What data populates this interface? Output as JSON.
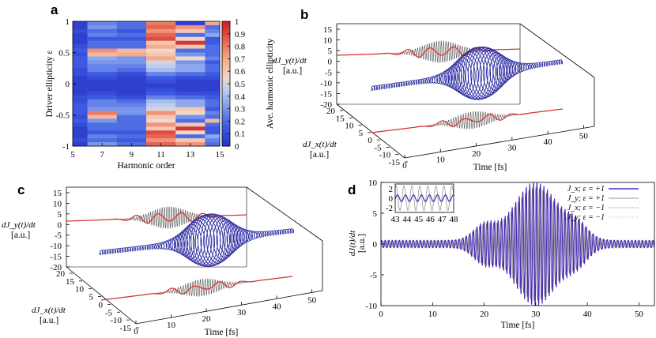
{
  "figure": {
    "panels": {
      "a": {
        "letter": "a",
        "xlabel": "Harmonic order",
        "ylabel": "Driver ellipticity ε",
        "colorbar_label": "Ave. harmonic ellipticity",
        "x_ticks": [
          "5",
          "7",
          "9",
          "11",
          "13",
          "15"
        ],
        "y_ticks": [
          "1",
          "0.5",
          "0",
          "-0.5",
          "-1"
        ],
        "cb_ticks": [
          "1",
          "0.9",
          "0.8",
          "0.7",
          "0.6",
          "0.5",
          "0.4",
          "0.3",
          "0.2",
          "0.1",
          "0"
        ]
      },
      "b": {
        "letter": "b",
        "y_label": "dJ_y(t)/dt",
        "y_unit": "[a.u.]",
        "x_label": "dJ_x(t)/dt",
        "x_unit": "[a.u.]",
        "time_label": "Time [fs]",
        "y_ticks": [
          "15",
          "10",
          "5",
          "0",
          "-5",
          "-10",
          "-15",
          "-20"
        ],
        "x_ticks": [
          "20",
          "15",
          "10",
          "5",
          "0",
          "-5",
          "-10",
          "-15"
        ],
        "time_ticks": [
          "0",
          "10",
          "20",
          "30",
          "40",
          "50"
        ]
      },
      "c": {
        "letter": "c",
        "y_label": "dJ_y(t)/dt",
        "y_unit": "[a.u.]",
        "x_label": "dJ_x(t)/dt",
        "x_unit": "[a.u.]",
        "time_label": "Time [fs]",
        "y_ticks": [
          "15",
          "10",
          "5",
          "0",
          "-5",
          "-10",
          "-15",
          "-20"
        ],
        "x_ticks": [
          "20",
          "15",
          "10",
          "5",
          "0",
          "-5",
          "-10",
          "-15"
        ],
        "time_ticks": [
          "0",
          "10",
          "20",
          "30",
          "40",
          "50"
        ]
      },
      "d": {
        "letter": "d",
        "ylabel": "dJ(t)/dt",
        "yunit": "[a.u.]",
        "xlabel": "Time [fs]",
        "x_ticks": [
          "0",
          "10",
          "20",
          "30",
          "40",
          "50"
        ],
        "y_ticks": [
          "10",
          "5",
          "0",
          "-5",
          "-10"
        ],
        "inset_x_ticks": [
          "43",
          "44",
          "45",
          "46",
          "47",
          "48"
        ],
        "inset_y_ticks": [
          "2",
          "0",
          "-2"
        ],
        "legend": [
          "J_x; ε = +1",
          "J_y; ε = +1",
          "J_x; ε = −1",
          "J_y; ε = −1"
        ]
      }
    },
    "colors": {
      "red": "#d62c2c",
      "blue": "#2a2aa0",
      "gray": "#555555",
      "purple": "#4b2bb8"
    }
  },
  "chart_data": [
    {
      "type": "heatmap",
      "panel": "a",
      "xlabel": "Harmonic order",
      "ylabel": "Driver ellipticity ε",
      "xlim": [
        5,
        15
      ],
      "ylim": [
        -1,
        1
      ],
      "colorbar": {
        "label": "Ave. harmonic ellipticity",
        "range": [
          0,
          1
        ],
        "colormap": "blue-white-red"
      },
      "x_centers": [
        5,
        7,
        9,
        11,
        13,
        15
      ],
      "rows_top_to_bottom": [
        [
          0.05,
          0.25,
          0.2,
          0.8,
          0.05,
          0.7
        ],
        [
          0.05,
          0.3,
          0.2,
          0.85,
          0.75,
          0.2
        ],
        [
          0.1,
          0.2,
          0.15,
          0.75,
          0.6,
          0.25
        ],
        [
          0.05,
          0.25,
          0.2,
          0.85,
          0.2,
          0.35
        ],
        [
          0.05,
          0.15,
          0.15,
          0.9,
          0.55,
          0.15
        ],
        [
          0.05,
          0.2,
          0.2,
          0.6,
          0.95,
          0.15
        ],
        [
          0.1,
          0.2,
          0.2,
          0.7,
          0.6,
          0.2
        ],
        [
          0.15,
          0.75,
          0.65,
          0.55,
          0.2,
          0.2
        ],
        [
          0.1,
          0.65,
          0.7,
          0.6,
          0.3,
          0.2
        ],
        [
          0.15,
          0.35,
          0.3,
          0.7,
          0.55,
          0.25
        ],
        [
          0.15,
          0.3,
          0.3,
          0.5,
          0.3,
          0.15
        ],
        [
          0.15,
          0.25,
          0.25,
          0.45,
          0.35,
          0.2
        ],
        [
          0.1,
          0.25,
          0.2,
          0.4,
          0.35,
          0.2
        ],
        [
          0.1,
          0.15,
          0.1,
          0.25,
          0.2,
          0.15
        ],
        [
          0.05,
          0.1,
          0.05,
          0.15,
          0.1,
          0.1
        ],
        [
          0.05,
          0.05,
          0.05,
          0.1,
          0.05,
          0.05
        ],
        [
          0.05,
          0.05,
          0.05,
          0.05,
          0.05,
          0.05
        ],
        [
          0.05,
          0.05,
          0.05,
          0.1,
          0.05,
          0.05
        ],
        [
          0.05,
          0.1,
          0.05,
          0.15,
          0.1,
          0.1
        ],
        [
          0.1,
          0.15,
          0.1,
          0.25,
          0.2,
          0.15
        ],
        [
          0.1,
          0.25,
          0.2,
          0.4,
          0.35,
          0.2
        ],
        [
          0.15,
          0.25,
          0.25,
          0.45,
          0.35,
          0.2
        ],
        [
          0.15,
          0.3,
          0.3,
          0.5,
          0.6,
          0.15
        ],
        [
          0.15,
          0.8,
          0.3,
          0.75,
          0.55,
          0.25
        ],
        [
          0.1,
          0.65,
          0.2,
          0.6,
          0.3,
          0.2
        ],
        [
          0.15,
          0.3,
          0.2,
          0.55,
          0.2,
          0.65
        ],
        [
          0.1,
          0.2,
          0.2,
          0.75,
          0.6,
          0.2
        ],
        [
          0.05,
          0.2,
          0.2,
          0.6,
          0.95,
          0.15
        ],
        [
          0.05,
          0.15,
          0.15,
          0.9,
          0.55,
          0.15
        ],
        [
          0.05,
          0.25,
          0.2,
          0.85,
          0.2,
          0.35
        ],
        [
          0.1,
          0.2,
          0.15,
          0.75,
          0.6,
          0.25
        ],
        [
          0.05,
          0.3,
          0.2,
          0.85,
          0.75,
          0.2
        ]
      ]
    },
    {
      "type": "line",
      "panel": "d",
      "xlabel": "Time [fs]",
      "ylabel": "dJ(t)/dt [a.u.]",
      "xlim": [
        0,
        53
      ],
      "ylim": [
        -10,
        10
      ],
      "grid": false,
      "legend_position": "top-right",
      "series": [
        {
          "name": "J_x; ε = +1",
          "style": "solid-purple",
          "envelope_peaks": [
            [
              20,
              3
            ],
            [
              30,
              10
            ],
            [
              38,
              3
            ]
          ]
        },
        {
          "name": "J_y; ε = +1",
          "style": "solid-gray"
        },
        {
          "name": "J_x; ε = −1",
          "style": "dotted-gray"
        },
        {
          "name": "J_y; ε = −1",
          "style": "dotted-gray"
        }
      ],
      "inset": {
        "xlim": [
          43,
          48
        ],
        "ylim": [
          -3,
          3
        ]
      }
    }
  ]
}
